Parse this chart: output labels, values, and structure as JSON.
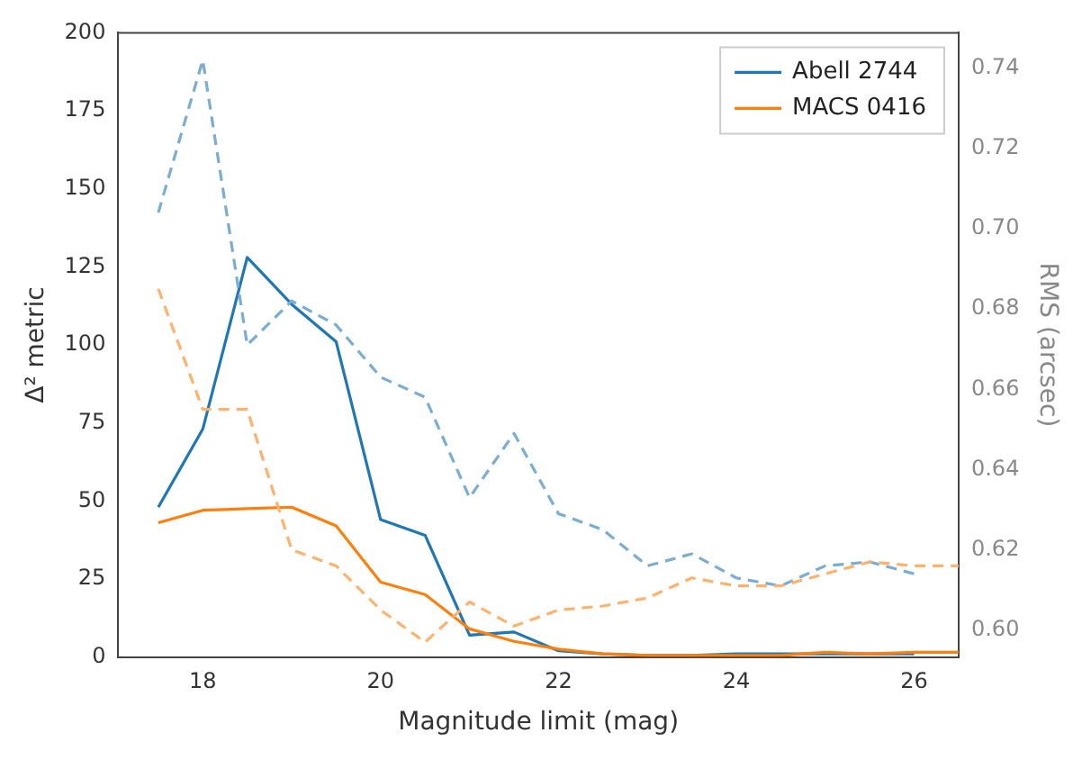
{
  "chart_data": {
    "type": "line",
    "xlabel": "Magnitude limit (mag)",
    "ylabel": "Δ² metric",
    "y2label": "RMS (arcsec)",
    "xlim": [
      17.05,
      26.5
    ],
    "xticks": [
      18,
      20,
      22,
      24,
      26
    ],
    "ylim": [
      0,
      200
    ],
    "yticks": [
      0,
      25,
      50,
      75,
      100,
      125,
      150,
      175,
      200
    ],
    "y2lim": [
      0.5933,
      0.7488
    ],
    "y2ticks": [
      {
        "value": 0.6,
        "label": "0.60"
      },
      {
        "value": 0.62,
        "label": "0.62"
      },
      {
        "value": 0.64,
        "label": "0.64"
      },
      {
        "value": 0.66,
        "label": "0.66"
      },
      {
        "value": 0.68,
        "label": "0.68"
      },
      {
        "value": 0.7,
        "label": "0.70"
      },
      {
        "value": 0.72,
        "label": "0.72"
      },
      {
        "value": 0.74,
        "label": "0.74"
      }
    ],
    "grid": false,
    "legend": "top right",
    "marker": "none",
    "series": [
      {
        "name": "Abell 2744",
        "color": "#1f77b4",
        "line_style": "solid",
        "x": [
          17.5,
          18,
          18.5,
          19,
          19.5,
          20,
          20.5,
          21,
          21.5,
          22,
          22.5,
          23,
          23.5,
          24,
          24.5,
          25,
          25.5,
          26
        ],
        "values": [
          48,
          73,
          128,
          113,
          101,
          44,
          39,
          7,
          8,
          2,
          1,
          0.5,
          0.5,
          1,
          1,
          1,
          1,
          1
        ]
      },
      {
        "name": "MACS 0416",
        "color": "#ff7f0e",
        "line_style": "solid",
        "x": [
          17.5,
          18,
          18.5,
          19,
          19.5,
          20,
          20.5,
          21,
          21.5,
          22,
          22.5,
          23,
          23.5,
          24,
          24.5,
          25,
          25.5,
          26,
          26.5
        ],
        "values": [
          43,
          47,
          47.5,
          48,
          42,
          24,
          20,
          9,
          5,
          2.5,
          1,
          0.5,
          0.5,
          0.5,
          0.5,
          1.5,
          1,
          1.5,
          1.5
        ]
      },
      {
        "color": "#79add2",
        "line_style": "dashed",
        "axis": "y2",
        "x": [
          17.5,
          18,
          18.5,
          19,
          19.5,
          20,
          20.5,
          21,
          21.5,
          22,
          22.5,
          23,
          23.5,
          24,
          24.5,
          25,
          25.5,
          26
        ],
        "values": [
          0.704,
          0.742,
          0.671,
          0.682,
          0.676,
          0.663,
          0.658,
          0.633,
          0.649,
          0.629,
          0.625,
          0.616,
          0.619,
          0.613,
          0.611,
          0.616,
          0.617,
          0.614
        ]
      },
      {
        "color": "#ffb26e",
        "line_style": "dashed",
        "axis": "y2",
        "x": [
          17.5,
          18,
          18.5,
          19,
          19.5,
          20,
          20.5,
          21,
          21.5,
          22,
          22.5,
          23,
          23.5,
          24,
          24.5,
          25,
          25.5,
          26,
          26.5
        ],
        "values": [
          0.685,
          0.655,
          0.655,
          0.62,
          0.616,
          0.605,
          0.597,
          0.607,
          0.601,
          0.605,
          0.606,
          0.608,
          0.613,
          0.611,
          0.611,
          0.614,
          0.617,
          0.616,
          0.616
        ]
      }
    ]
  }
}
